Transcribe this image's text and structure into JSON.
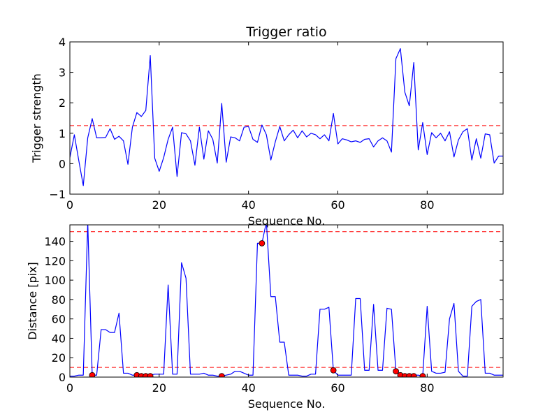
{
  "chart_data": [
    {
      "type": "line",
      "title": "Trigger ratio",
      "xlabel": "Sequence No.",
      "ylabel": "Trigger strength",
      "xlim": [
        0,
        97
      ],
      "ylim": [
        -1,
        4
      ],
      "xticks": [
        0,
        20,
        40,
        60,
        80
      ],
      "yticks": [
        -1,
        0,
        1,
        2,
        3,
        4
      ],
      "grid": false,
      "hlines": [
        {
          "y": 1.25,
          "color": "#ff0000",
          "style": "dashed"
        }
      ],
      "series": [
        {
          "color": "#0000ff",
          "x": [
            0,
            1,
            2,
            3,
            4,
            5,
            6,
            7,
            8,
            9,
            10,
            11,
            12,
            13,
            14,
            15,
            16,
            17,
            18,
            19,
            20,
            21,
            22,
            23,
            24,
            25,
            26,
            27,
            28,
            29,
            30,
            31,
            32,
            33,
            34,
            35,
            36,
            37,
            38,
            39,
            40,
            41,
            42,
            43,
            44,
            45,
            46,
            47,
            48,
            49,
            50,
            51,
            52,
            53,
            54,
            55,
            56,
            57,
            58,
            59,
            60,
            61,
            62,
            63,
            64,
            65,
            66,
            67,
            68,
            69,
            70,
            71,
            72,
            73,
            74,
            75,
            76,
            77,
            78,
            79,
            80,
            81,
            82,
            83,
            84,
            85,
            86,
            87,
            88,
            89,
            90,
            91,
            92,
            93,
            94,
            95,
            96,
            97
          ],
          "y": [
            0.2,
            0.95,
            0.1,
            -0.72,
            0.85,
            1.48,
            0.85,
            0.85,
            0.86,
            1.15,
            0.8,
            0.9,
            0.75,
            -0.02,
            1.2,
            1.68,
            1.55,
            1.75,
            3.55,
            0.18,
            -0.25,
            0.2,
            0.8,
            1.2,
            -0.42,
            1.02,
            0.98,
            0.75,
            -0.05,
            1.2,
            0.15,
            1.08,
            0.8,
            0.02,
            1.98,
            0.05,
            0.88,
            0.85,
            0.75,
            1.2,
            1.22,
            0.8,
            0.7,
            1.27,
            0.95,
            0.12,
            0.72,
            1.22,
            0.75,
            0.95,
            1.1,
            0.85,
            1.08,
            0.88,
            1.0,
            0.95,
            0.82,
            0.95,
            0.75,
            1.65,
            0.65,
            0.82,
            0.78,
            0.72,
            0.75,
            0.7,
            0.8,
            0.82,
            0.55,
            0.75,
            0.85,
            0.75,
            0.38,
            3.45,
            3.78,
            2.35,
            1.9,
            3.32,
            0.45,
            1.35,
            0.3,
            1.02,
            0.85,
            1.0,
            0.75,
            1.05,
            0.22,
            0.78,
            1.05,
            1.15,
            0.12,
            0.82,
            0.18,
            0.98,
            0.95,
            0.02,
            0.25,
            0.25
          ]
        }
      ]
    },
    {
      "type": "line",
      "title": "",
      "xlabel": "Sequence No.",
      "ylabel": "Distance [pix]",
      "xlim": [
        0,
        97
      ],
      "ylim": [
        0,
        157
      ],
      "xticks": [
        0,
        20,
        40,
        60,
        80
      ],
      "yticks": [
        0,
        20,
        40,
        60,
        80,
        100,
        120,
        140
      ],
      "grid": false,
      "hlines": [
        {
          "y": 10,
          "color": "#ff0000",
          "style": "dashed"
        },
        {
          "y": 150,
          "color": "#ff0000",
          "style": "dashed"
        }
      ],
      "series": [
        {
          "color": "#0000ff",
          "x": [
            0,
            1,
            2,
            3,
            4,
            5,
            6,
            7,
            8,
            9,
            10,
            11,
            12,
            13,
            14,
            15,
            16,
            17,
            18,
            19,
            20,
            21,
            22,
            23,
            24,
            25,
            26,
            27,
            28,
            29,
            30,
            31,
            32,
            33,
            34,
            35,
            36,
            37,
            38,
            39,
            40,
            41,
            42,
            43,
            44,
            45,
            46,
            47,
            48,
            49,
            50,
            51,
            52,
            53,
            54,
            55,
            56,
            57,
            58,
            59,
            60,
            61,
            62,
            63,
            64,
            65,
            66,
            67,
            68,
            69,
            70,
            71,
            72,
            73,
            74,
            75,
            76,
            77,
            78,
            79,
            80,
            81,
            82,
            83,
            84,
            85,
            86,
            87,
            88,
            89,
            90,
            91,
            92,
            93,
            94,
            95,
            96,
            97
          ],
          "y": [
            1,
            1,
            2,
            2,
            160,
            2,
            2,
            49,
            49,
            46,
            46,
            66,
            4,
            4,
            2,
            2,
            2,
            2,
            2,
            3,
            3,
            3,
            95,
            3,
            3,
            118,
            102,
            3,
            3,
            3,
            4,
            2,
            2,
            1,
            1,
            2,
            3,
            6,
            6,
            4,
            2,
            2,
            138,
            138,
            160,
            83,
            83,
            36,
            36,
            2,
            2,
            2,
            1,
            1,
            3,
            3,
            70,
            70,
            72,
            7,
            2,
            2,
            2,
            2,
            81,
            81,
            7,
            7,
            75,
            7,
            7,
            71,
            70,
            6,
            3,
            2,
            2,
            2,
            2,
            1,
            73,
            6,
            4,
            4,
            5,
            60,
            76,
            6,
            1,
            1,
            73,
            78,
            80,
            4,
            4,
            2,
            2,
            2
          ]
        }
      ],
      "markers": {
        "color": "#ff0000",
        "x": [
          5,
          15,
          16,
          17,
          18,
          34,
          43,
          59,
          73,
          74,
          75,
          76,
          77,
          79
        ],
        "y": [
          2,
          2,
          1,
          1,
          1,
          1,
          138,
          7,
          6,
          2,
          1,
          1,
          1,
          1
        ]
      }
    }
  ]
}
